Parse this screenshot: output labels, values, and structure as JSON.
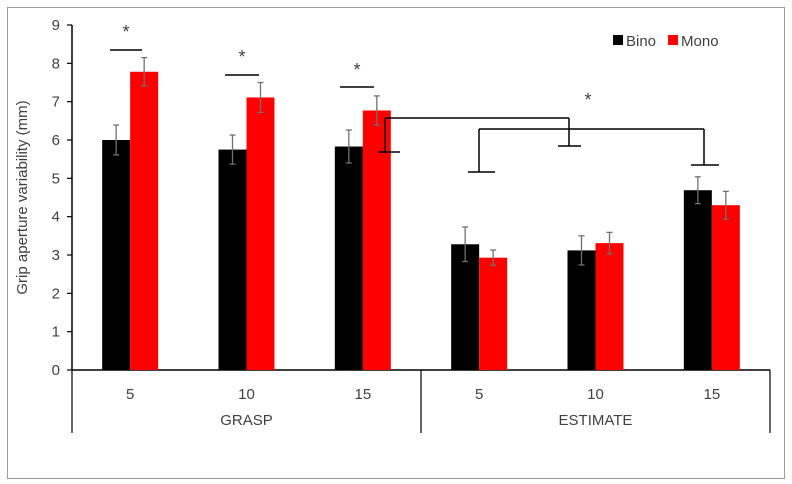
{
  "chart_data": {
    "type": "bar",
    "title": "",
    "ylabel": "Grip aperture variability (mm)",
    "xlabel": "",
    "ylim": [
      0,
      9
    ],
    "yticks": [
      0,
      1,
      2,
      3,
      4,
      5,
      6,
      7,
      8,
      9
    ],
    "grid": false,
    "legend_position": "top-right",
    "groups": [
      {
        "label": "GRASP",
        "categories": [
          "5",
          "10",
          "15"
        ]
      },
      {
        "label": "ESTIMATE",
        "categories": [
          "5",
          "10",
          "15"
        ]
      }
    ],
    "categories": [
      "5",
      "10",
      "15",
      "5",
      "10",
      "15"
    ],
    "series": [
      {
        "name": "Bino",
        "color": "#000000",
        "values": [
          6.0,
          5.75,
          5.83,
          3.28,
          3.12,
          4.69
        ],
        "errors": [
          0.39,
          0.38,
          0.43,
          0.45,
          0.38,
          0.35
        ]
      },
      {
        "name": "Mono",
        "color": "#ff0000",
        "values": [
          7.78,
          7.11,
          6.77,
          2.93,
          3.31,
          4.3
        ],
        "errors": [
          0.37,
          0.39,
          0.38,
          0.2,
          0.28,
          0.36
        ]
      }
    ],
    "significance_marks": [
      "*",
      "*",
      "*",
      "*"
    ]
  }
}
